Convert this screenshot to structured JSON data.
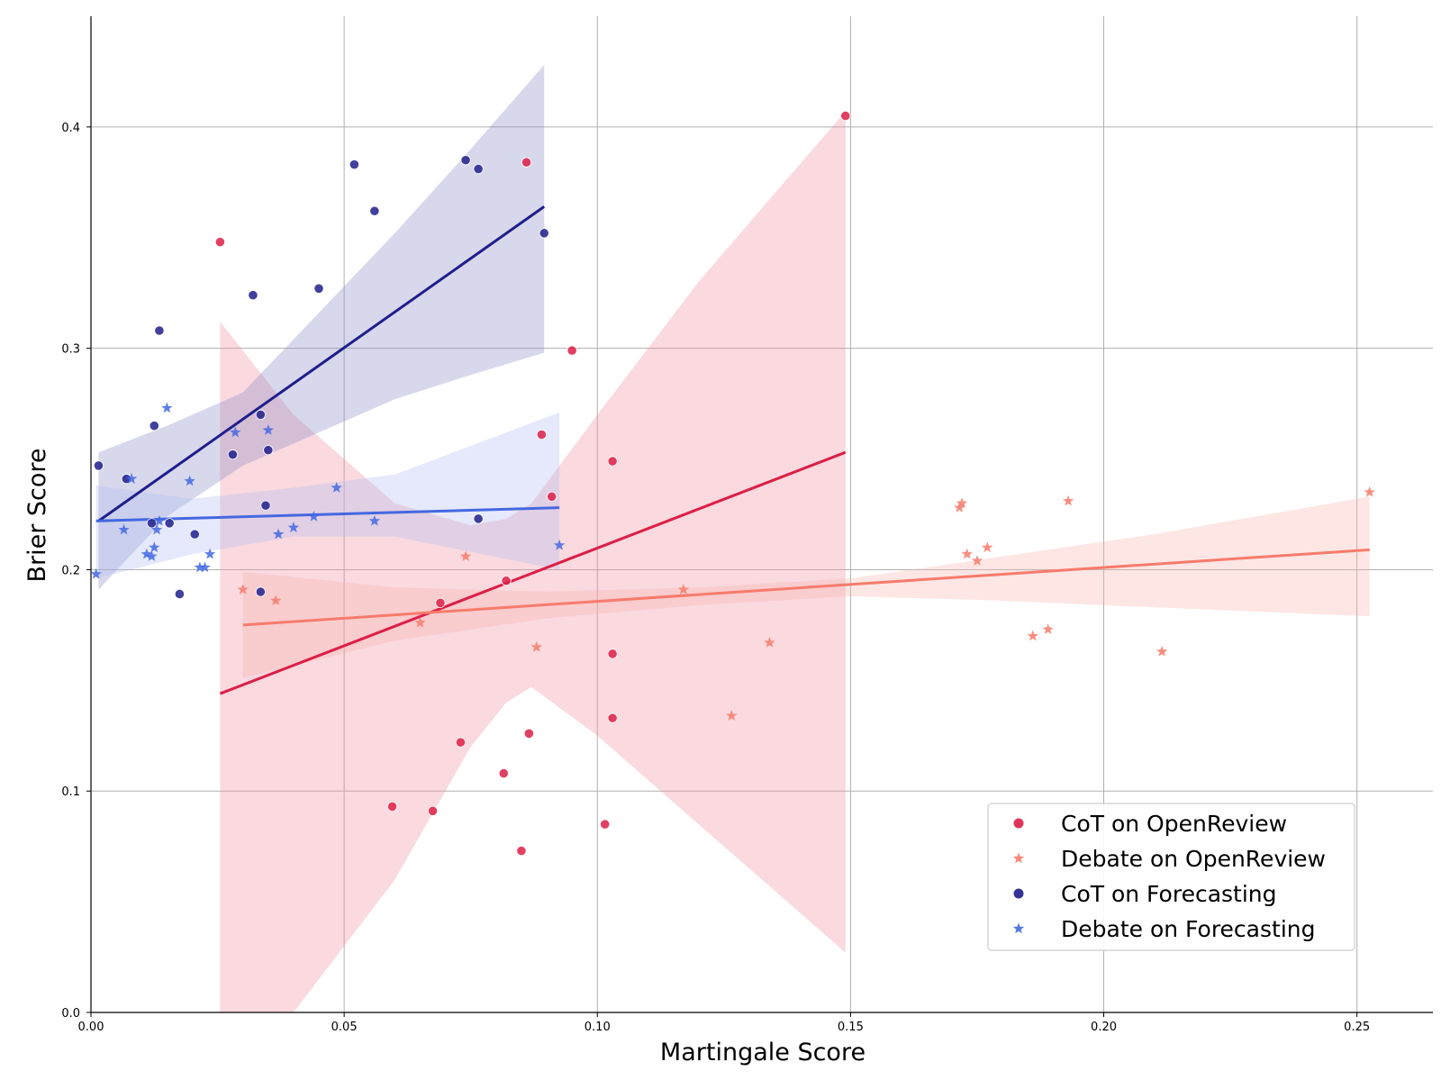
{
  "chart_data": {
    "type": "scatter",
    "title": "",
    "xlabel": "Martingale Score",
    "ylabel": "Brier Score",
    "xlim": [
      0.0,
      0.265
    ],
    "ylim": [
      0.0,
      0.45
    ],
    "xticks": [
      0.0,
      0.05,
      0.1,
      0.15,
      0.2,
      0.25
    ],
    "xtick_labels": [
      "0.00",
      "0.05",
      "0.10",
      "0.15",
      "0.20",
      "0.25"
    ],
    "yticks": [
      0.0,
      0.1,
      0.2,
      0.3,
      0.4
    ],
    "ytick_labels": [
      "0.0",
      "0.1",
      "0.2",
      "0.3",
      "0.4"
    ],
    "grid": true,
    "legend_position": "bottom-right",
    "series": [
      {
        "name": "CoT on OpenReview",
        "marker": "circle",
        "color": "#dc1e46",
        "band_color": "#f08c9e",
        "points": [
          [
            0.0255,
            0.348
          ],
          [
            0.086,
            0.384
          ],
          [
            0.095,
            0.299
          ],
          [
            0.149,
            0.405
          ],
          [
            0.089,
            0.261
          ],
          [
            0.103,
            0.249
          ],
          [
            0.091,
            0.233
          ],
          [
            0.082,
            0.195
          ],
          [
            0.069,
            0.185
          ],
          [
            0.103,
            0.162
          ],
          [
            0.103,
            0.133
          ],
          [
            0.0865,
            0.126
          ],
          [
            0.073,
            0.122
          ],
          [
            0.0815,
            0.108
          ],
          [
            0.0595,
            0.093
          ],
          [
            0.0675,
            0.091
          ],
          [
            0.1015,
            0.085
          ],
          [
            0.085,
            0.073
          ]
        ],
        "fit": {
          "x": [
            0.0255,
            0.149
          ],
          "y": [
            0.144,
            0.253
          ]
        },
        "ci_band": {
          "x": [
            0.0255,
            0.04,
            0.06,
            0.075,
            0.082,
            0.087,
            0.1,
            0.12,
            0.135,
            0.149
          ],
          "lower": [
            0.0,
            0.0,
            0.06,
            0.12,
            0.14,
            0.147,
            0.125,
            0.085,
            0.055,
            0.027
          ],
          "upper": [
            0.312,
            0.27,
            0.23,
            0.22,
            0.223,
            0.23,
            0.27,
            0.33,
            0.37,
            0.407
          ]
        }
      },
      {
        "name": "Debate on OpenReview",
        "marker": "star",
        "color": "#f77b6b",
        "band_color": "#f9b3ad",
        "points": [
          [
            0.03,
            0.191
          ],
          [
            0.0365,
            0.186
          ],
          [
            0.065,
            0.176
          ],
          [
            0.074,
            0.206
          ],
          [
            0.088,
            0.165
          ],
          [
            0.117,
            0.191
          ],
          [
            0.1265,
            0.134
          ],
          [
            0.134,
            0.167
          ],
          [
            0.1715,
            0.228
          ],
          [
            0.172,
            0.23
          ],
          [
            0.173,
            0.207
          ],
          [
            0.175,
            0.204
          ],
          [
            0.177,
            0.21
          ],
          [
            0.186,
            0.17
          ],
          [
            0.189,
            0.173
          ],
          [
            0.193,
            0.231
          ],
          [
            0.2115,
            0.163
          ],
          [
            0.2525,
            0.235
          ]
        ],
        "fit": {
          "x": [
            0.03,
            0.2525
          ],
          "y": [
            0.175,
            0.209
          ]
        },
        "ci_band": {
          "x": [
            0.03,
            0.06,
            0.09,
            0.12,
            0.15,
            0.18,
            0.21,
            0.2525
          ],
          "lower": [
            0.151,
            0.168,
            0.178,
            0.184,
            0.188,
            0.186,
            0.183,
            0.179
          ],
          "upper": [
            0.199,
            0.192,
            0.19,
            0.192,
            0.196,
            0.206,
            0.216,
            0.233
          ]
        }
      },
      {
        "name": "CoT on Forecasting",
        "marker": "circle",
        "color": "#1e1e8c",
        "band_color": "#8a8ac4",
        "points": [
          [
            0.0015,
            0.247
          ],
          [
            0.007,
            0.241
          ],
          [
            0.0125,
            0.265
          ],
          [
            0.0135,
            0.308
          ],
          [
            0.012,
            0.221
          ],
          [
            0.0155,
            0.221
          ],
          [
            0.0205,
            0.216
          ],
          [
            0.0175,
            0.189
          ],
          [
            0.028,
            0.252
          ],
          [
            0.032,
            0.324
          ],
          [
            0.0335,
            0.27
          ],
          [
            0.035,
            0.254
          ],
          [
            0.0345,
            0.229
          ],
          [
            0.0335,
            0.19
          ],
          [
            0.045,
            0.327
          ],
          [
            0.052,
            0.383
          ],
          [
            0.056,
            0.362
          ],
          [
            0.074,
            0.385
          ],
          [
            0.0765,
            0.381
          ],
          [
            0.0765,
            0.223
          ],
          [
            0.0895,
            0.352
          ]
        ],
        "fit": {
          "x": [
            0.0015,
            0.0895
          ],
          "y": [
            0.222,
            0.364
          ]
        },
        "ci_band": {
          "x": [
            0.0015,
            0.015,
            0.03,
            0.045,
            0.06,
            0.075,
            0.0895
          ],
          "lower": [
            0.191,
            0.224,
            0.247,
            0.262,
            0.277,
            0.288,
            0.298
          ],
          "upper": [
            0.253,
            0.265,
            0.28,
            0.316,
            0.352,
            0.39,
            0.428
          ]
        }
      },
      {
        "name": "Debate on Forecasting",
        "marker": "star",
        "color": "#4468e0",
        "band_color": "#b0bdf2",
        "points": [
          [
            0.001,
            0.198
          ],
          [
            0.0065,
            0.218
          ],
          [
            0.008,
            0.241
          ],
          [
            0.011,
            0.207
          ],
          [
            0.012,
            0.206
          ],
          [
            0.0125,
            0.21
          ],
          [
            0.013,
            0.218
          ],
          [
            0.0135,
            0.222
          ],
          [
            0.015,
            0.273
          ],
          [
            0.0195,
            0.24
          ],
          [
            0.0215,
            0.201
          ],
          [
            0.0225,
            0.201
          ],
          [
            0.0235,
            0.207
          ],
          [
            0.0285,
            0.262
          ],
          [
            0.035,
            0.263
          ],
          [
            0.037,
            0.216
          ],
          [
            0.04,
            0.219
          ],
          [
            0.044,
            0.224
          ],
          [
            0.0485,
            0.237
          ],
          [
            0.056,
            0.222
          ],
          [
            0.0925,
            0.211
          ]
        ],
        "fit": {
          "x": [
            0.001,
            0.0925
          ],
          "y": [
            0.222,
            0.228
          ]
        },
        "ci_band": {
          "x": [
            0.001,
            0.02,
            0.04,
            0.06,
            0.0925
          ],
          "lower": [
            0.196,
            0.207,
            0.215,
            0.215,
            0.2
          ],
          "upper": [
            0.238,
            0.232,
            0.237,
            0.243,
            0.271
          ]
        }
      }
    ]
  }
}
